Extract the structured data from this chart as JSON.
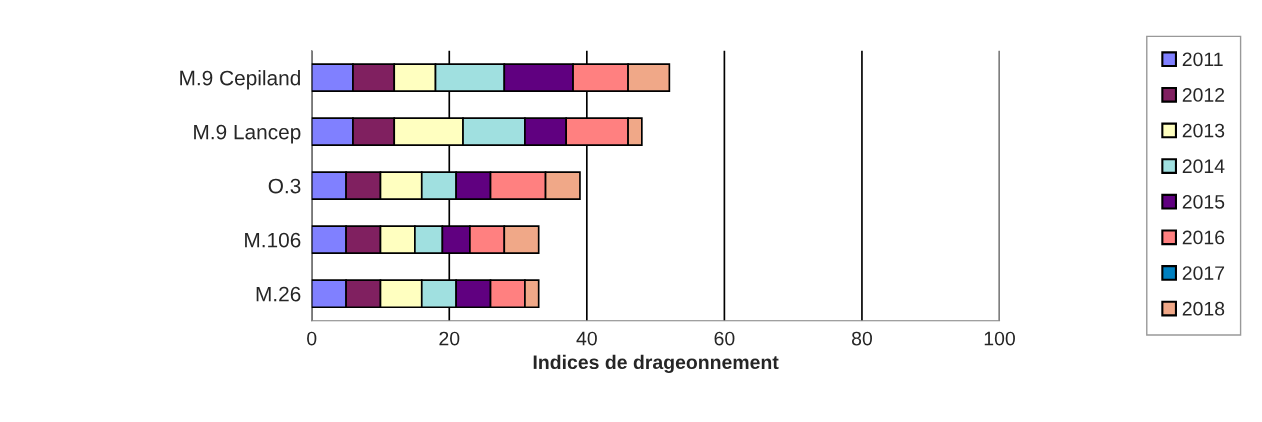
{
  "chart_data": {
    "type": "bar",
    "orientation": "horizontal",
    "stacked": true,
    "xlabel": "Indices de drageonnement",
    "categories": [
      "M.9 Cepiland",
      "M.9 Lancep",
      "O.3",
      "M.106",
      "M.26"
    ],
    "series": [
      {
        "name": "2011",
        "color": "#8080ff",
        "values": [
          6,
          6,
          5,
          5,
          5
        ]
      },
      {
        "name": "2012",
        "color": "#802060",
        "values": [
          6,
          6,
          5,
          5,
          5
        ]
      },
      {
        "name": "2013",
        "color": "#ffffc0",
        "values": [
          6,
          10,
          6,
          5,
          6
        ]
      },
      {
        "name": "2014",
        "color": "#a0e0e0",
        "values": [
          10,
          9,
          5,
          4,
          5
        ]
      },
      {
        "name": "2015",
        "color": "#600080",
        "values": [
          10,
          6,
          5,
          4,
          5
        ]
      },
      {
        "name": "2016",
        "color": "#ff8080",
        "values": [
          8,
          9,
          8,
          5,
          5
        ]
      },
      {
        "name": "2017",
        "color": "#0080c0",
        "values": [
          0,
          0,
          0,
          0,
          0
        ]
      },
      {
        "name": "2018",
        "color": "#f0a888",
        "values": [
          6,
          2,
          5,
          5,
          2
        ]
      }
    ],
    "xlim": [
      0,
      100
    ],
    "xticks": [
      0,
      20,
      40,
      60,
      80,
      100
    ],
    "grid": "x",
    "legend": "right"
  }
}
